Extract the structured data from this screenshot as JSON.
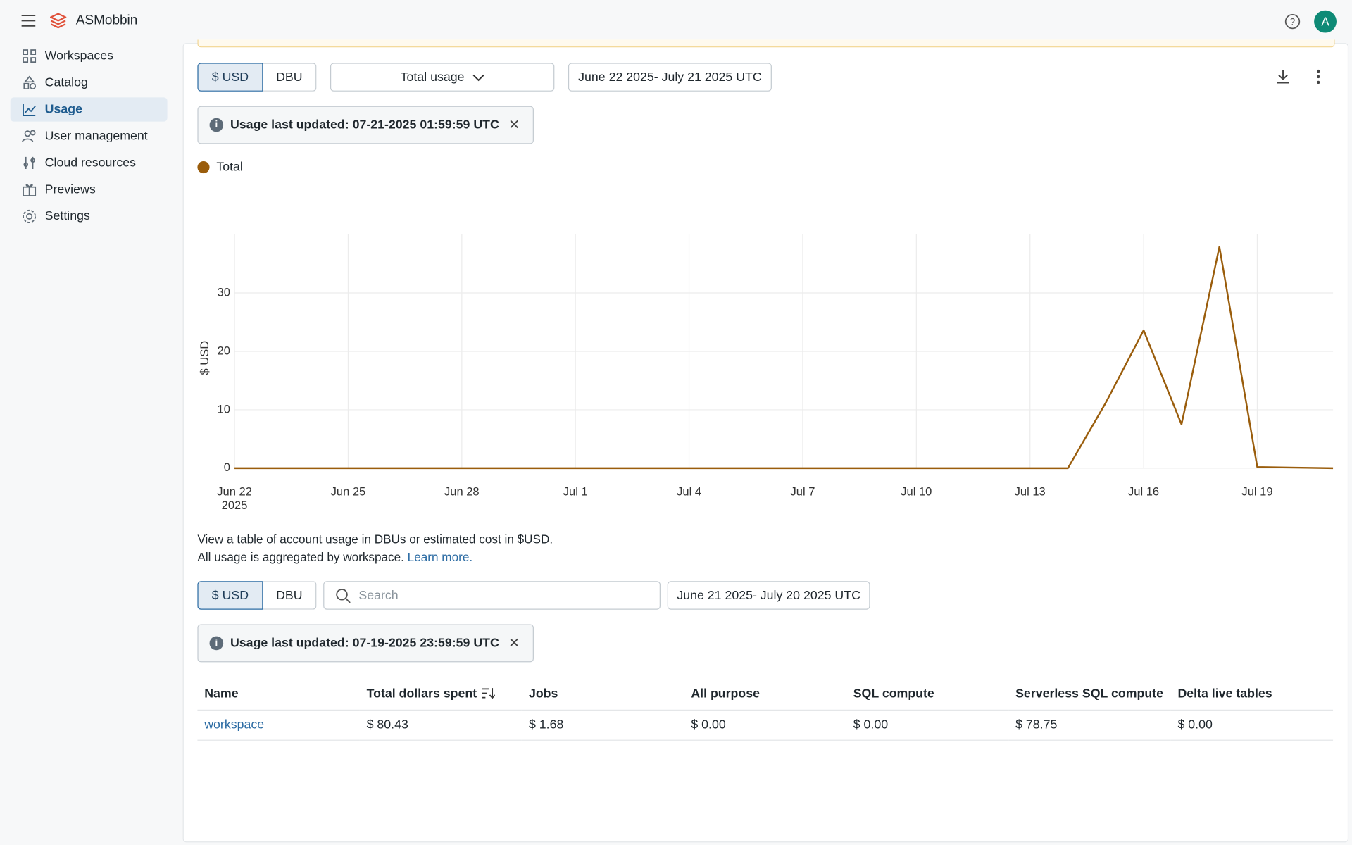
{
  "header": {
    "app_name": "ASMobbin",
    "avatar_initial": "A"
  },
  "sidebar": {
    "items": [
      "Workspaces",
      "Catalog",
      "Usage",
      "User management",
      "Cloud resources",
      "Previews",
      "Settings"
    ],
    "active_index": 2
  },
  "usage_toolbar": {
    "units": [
      "$ USD",
      "DBU"
    ],
    "selected_unit": 0,
    "view": "Total usage",
    "date_range": "June 22 2025- July 21 2025 UTC"
  },
  "usage_notice": "Usage last updated: 07-21-2025 01:59:59 UTC",
  "chart_data": {
    "type": "line",
    "y_label": "$ USD",
    "categories": [
      "Jun 22",
      null,
      null,
      "Jun 25",
      null,
      null,
      "Jun 28",
      null,
      null,
      "Jul 1",
      null,
      null,
      "Jul 4",
      null,
      null,
      "Jul 7",
      null,
      null,
      "Jul 10",
      null,
      null,
      "Jul 13",
      null,
      null,
      "Jul 16",
      null,
      null,
      "Jul 19",
      null,
      null
    ],
    "x_year_label": "2025",
    "series": [
      {
        "name": "Total",
        "color": "#9a5d0c",
        "values": [
          0,
          0,
          0,
          0,
          0,
          0,
          0,
          0,
          0,
          0,
          0,
          0,
          0,
          0,
          0,
          0,
          0,
          0,
          0,
          0,
          0,
          0,
          0,
          11.2,
          23.6,
          7.5,
          37.9,
          0.2,
          0.1,
          0
        ]
      }
    ],
    "ylim": [
      0,
      40
    ],
    "yticks": [
      0,
      10,
      20,
      30
    ],
    "grid": true
  },
  "table_section": {
    "description": [
      "View a table of account usage in DBUs or estimated cost in $USD.",
      "All usage is aggregated by workspace."
    ],
    "link": "Learn more.",
    "units": [
      "$ USD",
      "DBU"
    ],
    "selected_unit": 0,
    "search_placeholder": "Search",
    "date_range": "June 21 2025- July 20 2025 UTC",
    "notice": "Usage last updated: 07-19-2025 23:59:59 UTC",
    "columns": [
      "Name",
      "Total dollars spent",
      "Jobs",
      "All purpose",
      "SQL compute",
      "Serverless SQL compute",
      "Delta live tables"
    ],
    "sorted_column": 1,
    "rows": [
      [
        "workspace",
        "$ 80.43",
        "$ 1.68",
        "$ 0.00",
        "$ 0.00",
        "$ 78.75",
        "$ 0.00"
      ]
    ]
  }
}
